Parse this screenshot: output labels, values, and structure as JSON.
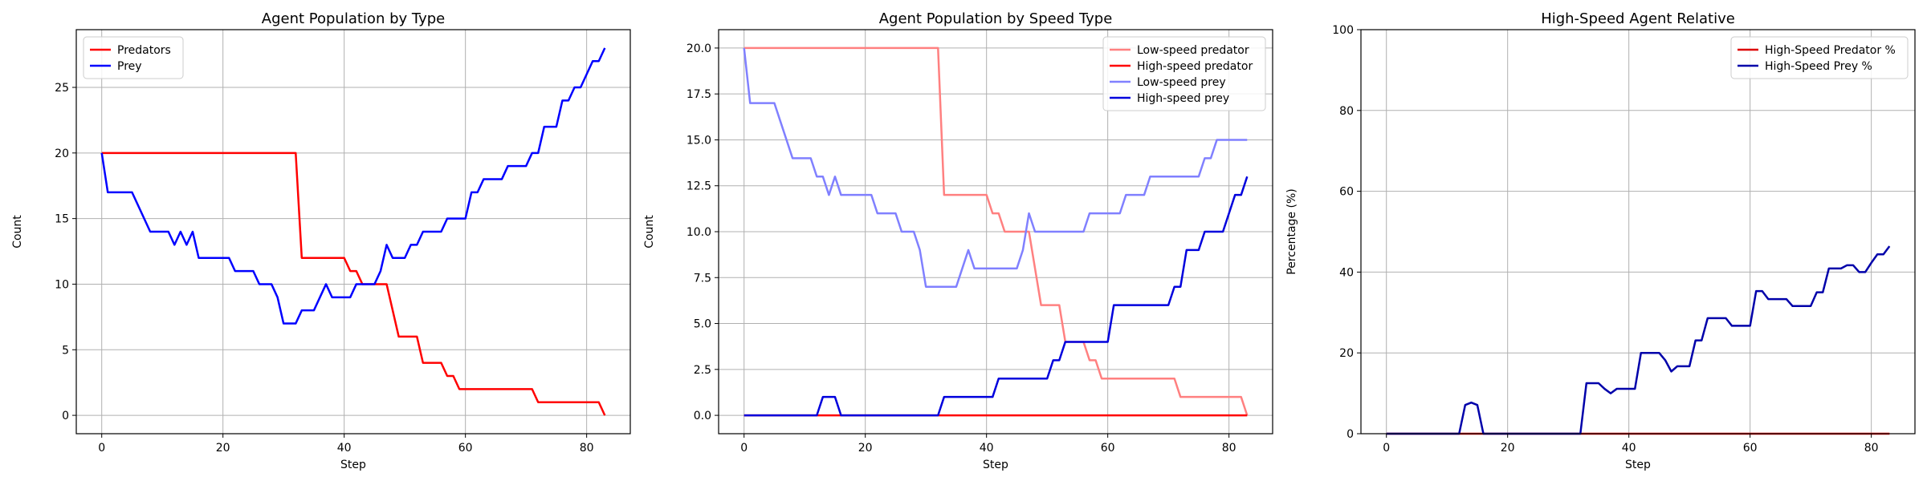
{
  "figure": {
    "background": "#ffffff"
  },
  "chart_data": [
    {
      "type": "line",
      "title": "Agent Population by Type",
      "xlabel": "Step",
      "ylabel": "Count",
      "xlim": [
        -4.2,
        87.2
      ],
      "ylim": [
        -1.4,
        29.4
      ],
      "xticks": [
        0,
        20,
        40,
        60,
        80
      ],
      "yticks": [
        0,
        5,
        10,
        15,
        20,
        25
      ],
      "ytick_labels": [
        "0",
        "5",
        "10",
        "15",
        "20",
        "25"
      ],
      "grid": true,
      "legend": "top-left",
      "series": [
        {
          "name": "Predators",
          "color": "#ff0000",
          "values": [
            20,
            20,
            20,
            20,
            20,
            20,
            20,
            20,
            20,
            20,
            20,
            20,
            20,
            20,
            20,
            20,
            20,
            20,
            20,
            20,
            20,
            20,
            20,
            20,
            20,
            20,
            20,
            20,
            20,
            20,
            20,
            20,
            20,
            12,
            12,
            12,
            12,
            12,
            12,
            12,
            12,
            11,
            11,
            10,
            10,
            10,
            10,
            10,
            8,
            6,
            6,
            6,
            6,
            4,
            4,
            4,
            4,
            3,
            3,
            2,
            2,
            2,
            2,
            2,
            2,
            2,
            2,
            2,
            2,
            2,
            2,
            2,
            1,
            1,
            1,
            1,
            1,
            1,
            1,
            1,
            1,
            1,
            1,
            0
          ]
        },
        {
          "name": "Prey",
          "color": "#0000ff",
          "values": [
            20,
            17,
            17,
            17,
            17,
            17,
            16,
            15,
            14,
            14,
            14,
            14,
            13,
            14,
            13,
            14,
            12,
            12,
            12,
            12,
            12,
            12,
            11,
            11,
            11,
            11,
            10,
            10,
            10,
            9,
            7,
            7,
            7,
            8,
            8,
            8,
            9,
            10,
            9,
            9,
            9,
            9,
            10,
            10,
            10,
            10,
            11,
            13,
            12,
            12,
            12,
            13,
            13,
            14,
            14,
            14,
            14,
            15,
            15,
            15,
            15,
            17,
            17,
            18,
            18,
            18,
            18,
            19,
            19,
            19,
            19,
            20,
            20,
            22,
            22,
            22,
            24,
            24,
            25,
            25,
            26,
            27,
            27,
            28
          ]
        }
      ]
    },
    {
      "type": "line",
      "title": "Agent Population by Speed Type",
      "xlabel": "Step",
      "ylabel": "Count",
      "xlim": [
        -4.2,
        87.2
      ],
      "ylim": [
        -1.0,
        21.0
      ],
      "xticks": [
        0,
        20,
        40,
        60,
        80
      ],
      "yticks": [
        0,
        2.5,
        5,
        7.5,
        10,
        12.5,
        15,
        17.5,
        20
      ],
      "ytick_labels": [
        "0.0",
        "2.5",
        "5.0",
        "7.5",
        "10.0",
        "12.5",
        "15.0",
        "17.5",
        "20.0"
      ],
      "grid": true,
      "legend": "top-right",
      "series": [
        {
          "name": "Low-speed predator",
          "color": "#ff8080",
          "values": [
            20,
            20,
            20,
            20,
            20,
            20,
            20,
            20,
            20,
            20,
            20,
            20,
            20,
            20,
            20,
            20,
            20,
            20,
            20,
            20,
            20,
            20,
            20,
            20,
            20,
            20,
            20,
            20,
            20,
            20,
            20,
            20,
            20,
            12,
            12,
            12,
            12,
            12,
            12,
            12,
            12,
            11,
            11,
            10,
            10,
            10,
            10,
            10,
            8,
            6,
            6,
            6,
            6,
            4,
            4,
            4,
            4,
            3,
            3,
            2,
            2,
            2,
            2,
            2,
            2,
            2,
            2,
            2,
            2,
            2,
            2,
            2,
            1,
            1,
            1,
            1,
            1,
            1,
            1,
            1,
            1,
            1,
            1,
            0
          ]
        },
        {
          "name": "High-speed predator",
          "color": "#ff0000",
          "values": [
            0,
            0,
            0,
            0,
            0,
            0,
            0,
            0,
            0,
            0,
            0,
            0,
            0,
            0,
            0,
            0,
            0,
            0,
            0,
            0,
            0,
            0,
            0,
            0,
            0,
            0,
            0,
            0,
            0,
            0,
            0,
            0,
            0,
            0,
            0,
            0,
            0,
            0,
            0,
            0,
            0,
            0,
            0,
            0,
            0,
            0,
            0,
            0,
            0,
            0,
            0,
            0,
            0,
            0,
            0,
            0,
            0,
            0,
            0,
            0,
            0,
            0,
            0,
            0,
            0,
            0,
            0,
            0,
            0,
            0,
            0,
            0,
            0,
            0,
            0,
            0,
            0,
            0,
            0,
            0,
            0,
            0,
            0,
            0
          ]
        },
        {
          "name": "Low-speed prey",
          "color": "#8080ff",
          "values": [
            20,
            17,
            17,
            17,
            17,
            17,
            16,
            15,
            14,
            14,
            14,
            14,
            13,
            13,
            12,
            13,
            12,
            12,
            12,
            12,
            12,
            12,
            11,
            11,
            11,
            11,
            10,
            10,
            10,
            9,
            7,
            7,
            7,
            7,
            7,
            7,
            8,
            9,
            8,
            8,
            8,
            8,
            8,
            8,
            8,
            8,
            9,
            11,
            10,
            10,
            10,
            10,
            10,
            10,
            10,
            10,
            10,
            11,
            11,
            11,
            11,
            11,
            11,
            12,
            12,
            12,
            12,
            13,
            13,
            13,
            13,
            13,
            13,
            13,
            13,
            13,
            14,
            14,
            15,
            15,
            15,
            15,
            15,
            15
          ]
        },
        {
          "name": "High-speed prey",
          "color": "#0000dd",
          "values": [
            0,
            0,
            0,
            0,
            0,
            0,
            0,
            0,
            0,
            0,
            0,
            0,
            0,
            1,
            1,
            1,
            0,
            0,
            0,
            0,
            0,
            0,
            0,
            0,
            0,
            0,
            0,
            0,
            0,
            0,
            0,
            0,
            0,
            1,
            1,
            1,
            1,
            1,
            1,
            1,
            1,
            1,
            2,
            2,
            2,
            2,
            2,
            2,
            2,
            2,
            2,
            3,
            3,
            4,
            4,
            4,
            4,
            4,
            4,
            4,
            4,
            6,
            6,
            6,
            6,
            6,
            6,
            6,
            6,
            6,
            6,
            7,
            7,
            9,
            9,
            9,
            10,
            10,
            10,
            10,
            11,
            12,
            12,
            13
          ]
        }
      ]
    },
    {
      "type": "line",
      "title": "High-Speed Agent Relative",
      "xlabel": "Step",
      "ylabel": "Percentage (%)",
      "xlim": [
        -4.2,
        87.2
      ],
      "ylim": [
        0,
        100
      ],
      "xticks": [
        0,
        20,
        40,
        60,
        80
      ],
      "yticks": [
        0,
        20,
        40,
        60,
        80,
        100
      ],
      "ytick_labels": [
        "0",
        "20",
        "40",
        "60",
        "80",
        "100"
      ],
      "grid": true,
      "legend": "top-right",
      "series": [
        {
          "name": "High-Speed Predator %",
          "color": "#dd0000",
          "values": [
            0,
            0,
            0,
            0,
            0,
            0,
            0,
            0,
            0,
            0,
            0,
            0,
            0,
            0,
            0,
            0,
            0,
            0,
            0,
            0,
            0,
            0,
            0,
            0,
            0,
            0,
            0,
            0,
            0,
            0,
            0,
            0,
            0,
            0,
            0,
            0,
            0,
            0,
            0,
            0,
            0,
            0,
            0,
            0,
            0,
            0,
            0,
            0,
            0,
            0,
            0,
            0,
            0,
            0,
            0,
            0,
            0,
            0,
            0,
            0,
            0,
            0,
            0,
            0,
            0,
            0,
            0,
            0,
            0,
            0,
            0,
            0,
            0,
            0,
            0,
            0,
            0,
            0,
            0,
            0,
            0,
            0,
            0,
            0
          ]
        },
        {
          "name": "High-Speed Prey %",
          "color": "#0000aa",
          "values": [
            0,
            0,
            0,
            0,
            0,
            0,
            0,
            0,
            0,
            0,
            0,
            0,
            0,
            7.1,
            7.7,
            7.1,
            0,
            0,
            0,
            0,
            0,
            0,
            0,
            0,
            0,
            0,
            0,
            0,
            0,
            0,
            0,
            0,
            0,
            12.5,
            12.5,
            12.5,
            11.1,
            10,
            11.1,
            11.1,
            11.1,
            11.1,
            20,
            20,
            20,
            20,
            18.2,
            15.4,
            16.7,
            16.7,
            16.7,
            23.1,
            23.1,
            28.6,
            28.6,
            28.6,
            28.6,
            26.7,
            26.7,
            26.7,
            26.7,
            35.3,
            35.3,
            33.3,
            33.3,
            33.3,
            33.3,
            31.6,
            31.6,
            31.6,
            31.6,
            35,
            35,
            40.9,
            40.9,
            40.9,
            41.7,
            41.7,
            40,
            40,
            42.3,
            44.4,
            44.4,
            46.4
          ]
        }
      ]
    }
  ]
}
